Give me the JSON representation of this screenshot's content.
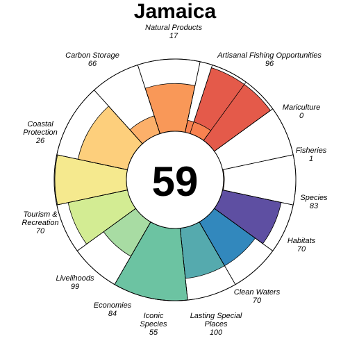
{
  "chart_data": {
    "type": "flower",
    "title": "Jamaica",
    "center_score": "59",
    "scale_max": 100,
    "petals": [
      {
        "name": "Artisanal Fishing Opportunities",
        "value": 96,
        "color": "#e45a4a"
      },
      {
        "name": "Mariculture",
        "value": 0,
        "color": "#f0773f"
      },
      {
        "name": "Fisheries",
        "value": 1,
        "color": "#f78e4f"
      },
      {
        "name": "Species",
        "value": 83,
        "color": "#5e4fa2"
      },
      {
        "name": "Habitats",
        "value": 70,
        "color": "#3288bd"
      },
      {
        "name": "Clean Waters",
        "value": 70,
        "color": "#55aaae"
      },
      {
        "name": "Lasting Special Places",
        "value": 100,
        "color": "#6cc3a2"
      },
      {
        "name": "Iconic Species",
        "value": 55,
        "color": "#a8dca3"
      },
      {
        "name": "Economies",
        "value": 84,
        "color": "#d3ec93"
      },
      {
        "name": "Livelihoods",
        "value": 99,
        "color": "#f5e98e"
      },
      {
        "name": "Tourism & Recreation",
        "value": 70,
        "color": "#fdcf7c"
      },
      {
        "name": "Coastal Protection",
        "value": 26,
        "color": "#fcb06a"
      },
      {
        "name": "Carbon Storage",
        "value": 66,
        "color": "#f99858"
      },
      {
        "name": "Natural Products",
        "value": 17,
        "color": "#f88250"
      }
    ],
    "labels": [
      {
        "lines": [
          "Artisanal Fishing Opportunities",
          "96"
        ]
      },
      {
        "lines": [
          "Mariculture",
          "0"
        ]
      },
      {
        "lines": [
          "Fisheries",
          "1"
        ]
      },
      {
        "lines": [
          "Species",
          "83"
        ]
      },
      {
        "lines": [
          "Habitats",
          "70"
        ]
      },
      {
        "lines": [
          "Clean Waters",
          "70"
        ]
      },
      {
        "lines": [
          "Lasting Special",
          "Places",
          "100"
        ]
      },
      {
        "lines": [
          "Iconic",
          "Species",
          "55"
        ]
      },
      {
        "lines": [
          "Economies",
          "84"
        ]
      },
      {
        "lines": [
          "Livelihoods",
          "99"
        ]
      },
      {
        "lines": [
          "Tourism &",
          "Recreation",
          "70"
        ]
      },
      {
        "lines": [
          "Coastal",
          "Protection",
          "26"
        ]
      },
      {
        "lines": [
          "Carbon Storage",
          "66"
        ]
      },
      {
        "lines": [
          "Natural Products",
          "17"
        ]
      }
    ]
  }
}
